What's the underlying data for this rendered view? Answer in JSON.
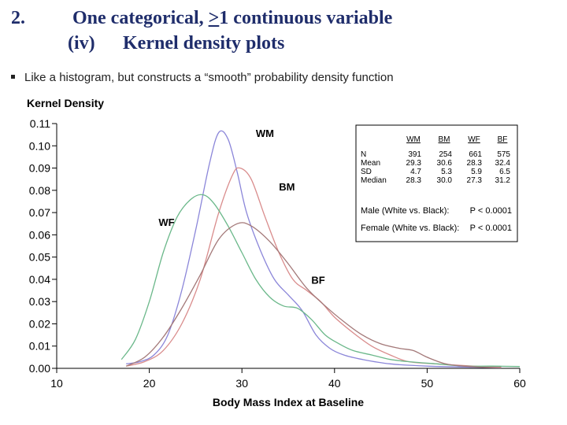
{
  "slide": {
    "title_num": "2.",
    "title_pre": "One categorical, ",
    "title_ge": ">",
    "title_post": "1 continuous variable",
    "sub_num": "(iv)",
    "sub_text": "Kernel density plots",
    "bullet": "Like a histogram, but constructs a “smooth” probability density function"
  },
  "colors": {
    "WM": "#8b86d9",
    "BM": "#d98c8c",
    "WF": "#6bb88a",
    "BF": "#a37878",
    "title": "#1f2d6b"
  },
  "chart_data": {
    "type": "line",
    "title": "",
    "ylabel": "Kernel Density",
    "xlabel": "Body Mass Index at Baseline",
    "xlim": [
      10,
      60
    ],
    "ylim": [
      0,
      0.11
    ],
    "xticks": [
      10,
      20,
      30,
      40,
      50,
      60
    ],
    "yticks": [
      "0.00",
      "0.01",
      "0.02",
      "0.03",
      "0.04",
      "0.05",
      "0.06",
      "0.07",
      "0.08",
      "0.09",
      "0.10",
      "0.11"
    ],
    "series": [
      {
        "name": "WM",
        "label_at": [
          31.5,
          0.104
        ],
        "points": [
          [
            17.5,
            0.002
          ],
          [
            19,
            0.003
          ],
          [
            20.5,
            0.006
          ],
          [
            22,
            0.015
          ],
          [
            23.5,
            0.035
          ],
          [
            25,
            0.062
          ],
          [
            26.5,
            0.092
          ],
          [
            27.5,
            0.106
          ],
          [
            28.5,
            0.103
          ],
          [
            29.5,
            0.088
          ],
          [
            30.5,
            0.07
          ],
          [
            32,
            0.053
          ],
          [
            33.5,
            0.04
          ],
          [
            35,
            0.033
          ],
          [
            36.5,
            0.026
          ],
          [
            38,
            0.015
          ],
          [
            39.5,
            0.009
          ],
          [
            41,
            0.006
          ],
          [
            43,
            0.004
          ],
          [
            46,
            0.002
          ],
          [
            50,
            0.001
          ],
          [
            55,
            0.0005
          ],
          [
            58,
            0.0002
          ]
        ]
      },
      {
        "name": "BM",
        "label_at": [
          34,
          0.08
        ],
        "points": [
          [
            17.5,
            0.001
          ],
          [
            19.5,
            0.003
          ],
          [
            21.5,
            0.008
          ],
          [
            23.5,
            0.02
          ],
          [
            25.5,
            0.04
          ],
          [
            27.5,
            0.07
          ],
          [
            29,
            0.087
          ],
          [
            29.8,
            0.09
          ],
          [
            31,
            0.085
          ],
          [
            32.5,
            0.068
          ],
          [
            34,
            0.052
          ],
          [
            35.5,
            0.04
          ],
          [
            37,
            0.035
          ],
          [
            38.5,
            0.03
          ],
          [
            40,
            0.023
          ],
          [
            42,
            0.016
          ],
          [
            44,
            0.01
          ],
          [
            46,
            0.006
          ],
          [
            48,
            0.003
          ],
          [
            51,
            0.002
          ],
          [
            55,
            0.001
          ],
          [
            58,
            0.0005
          ]
        ]
      },
      {
        "name": "WF",
        "label_at": [
          21,
          0.064
        ],
        "points": [
          [
            17,
            0.004
          ],
          [
            18.5,
            0.013
          ],
          [
            20,
            0.03
          ],
          [
            21.5,
            0.052
          ],
          [
            23,
            0.068
          ],
          [
            24.5,
            0.076
          ],
          [
            25.8,
            0.078
          ],
          [
            27,
            0.074
          ],
          [
            28.5,
            0.064
          ],
          [
            30,
            0.052
          ],
          [
            31.5,
            0.04
          ],
          [
            33,
            0.032
          ],
          [
            34.5,
            0.028
          ],
          [
            36,
            0.027
          ],
          [
            37.5,
            0.022
          ],
          [
            39,
            0.015
          ],
          [
            40.5,
            0.011
          ],
          [
            42,
            0.008
          ],
          [
            44,
            0.006
          ],
          [
            46,
            0.004
          ],
          [
            48,
            0.003
          ],
          [
            51,
            0.002
          ],
          [
            54,
            0.001
          ],
          [
            57,
            0.001
          ],
          [
            60,
            0.0008
          ]
        ]
      },
      {
        "name": "BF",
        "label_at": [
          37.5,
          0.038
        ],
        "points": [
          [
            17.5,
            0.001
          ],
          [
            19.5,
            0.005
          ],
          [
            21.5,
            0.014
          ],
          [
            23.5,
            0.027
          ],
          [
            25.5,
            0.042
          ],
          [
            27.5,
            0.058
          ],
          [
            29.5,
            0.065
          ],
          [
            31,
            0.064
          ],
          [
            33,
            0.057
          ],
          [
            35,
            0.047
          ],
          [
            37,
            0.036
          ],
          [
            39,
            0.028
          ],
          [
            41,
            0.021
          ],
          [
            43,
            0.015
          ],
          [
            45,
            0.011
          ],
          [
            47,
            0.009
          ],
          [
            48.5,
            0.008
          ],
          [
            50,
            0.005
          ],
          [
            52,
            0.002
          ],
          [
            54,
            0.001
          ],
          [
            56,
            0.0005
          ],
          [
            58,
            0.0003
          ]
        ]
      }
    ],
    "stats_table": {
      "headers": [
        "WM",
        "BM",
        "WF",
        "BF"
      ],
      "rows": [
        {
          "label": "N",
          "values": [
            "391",
            "254",
            "661",
            "575"
          ]
        },
        {
          "label": "Mean",
          "values": [
            "29.3",
            "30.6",
            "28.3",
            "32.4"
          ]
        },
        {
          "label": "SD",
          "values": [
            "4.7",
            "5.3",
            "5.9",
            "6.5"
          ]
        },
        {
          "label": "Median",
          "values": [
            "28.3",
            "30.0",
            "27.3",
            "31.2"
          ]
        }
      ],
      "tests": [
        {
          "label": "Male (White vs. Black):",
          "p": "P < 0.0001"
        },
        {
          "label": "Female (White vs. Black):",
          "p": "P < 0.0001"
        }
      ]
    }
  }
}
